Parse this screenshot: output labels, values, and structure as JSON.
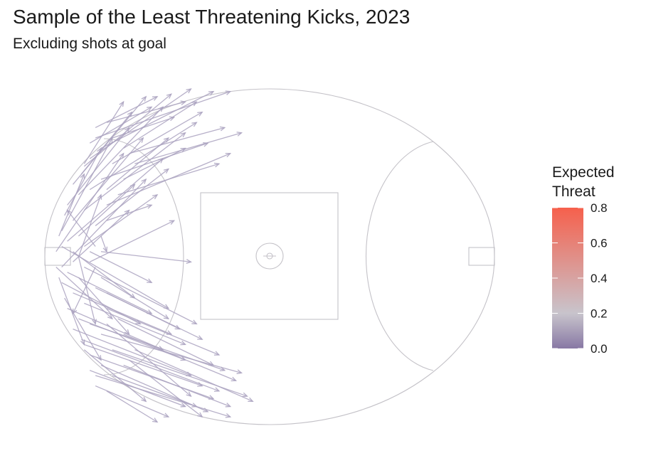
{
  "title": "Sample of the Least Threatening Kicks, 2023",
  "subtitle": "Excluding shots at goal",
  "legend": {
    "title_line1": "Expected",
    "title_line2": "Threat",
    "ticks": [
      "0.8",
      "0.6",
      "0.4",
      "0.2",
      "0.0"
    ],
    "colors": {
      "low": "#8878a4",
      "mid": "#c8c4cc",
      "high": "#f6604c"
    }
  },
  "colors": {
    "field_line": "#c4c2c8",
    "arrow": "#aaa2c0"
  },
  "chart_data": {
    "type": "scatter",
    "title": "Sample of the Least Threatening Kicks, 2023",
    "subtitle": "Excluding shots at goal",
    "xlim": [
      -80,
      80
    ],
    "ylim": [
      -65,
      65
    ],
    "grid": false,
    "legend_placement": "right",
    "color_scale": {
      "name": "Expected Threat",
      "range": [
        0.0,
        0.8
      ],
      "ticks": [
        0.0,
        0.2,
        0.4,
        0.6,
        0.8
      ]
    },
    "kicks": [
      {
        "x0": -62,
        "y0": 46,
        "x1": -14,
        "y1": 64,
        "xt": 0.06
      },
      {
        "x0": -60,
        "y0": 42,
        "x1": -20,
        "y1": 64,
        "xt": 0.05
      },
      {
        "x0": -64,
        "y0": 38,
        "x1": -28,
        "y1": 65,
        "xt": 0.05
      },
      {
        "x0": -66,
        "y0": 35,
        "x1": -35,
        "y1": 63,
        "xt": 0.04
      },
      {
        "x0": -70,
        "y0": 28,
        "x1": -44,
        "y1": 62,
        "xt": 0.04
      },
      {
        "x0": -67,
        "y0": 32,
        "x1": -49,
        "y1": 56,
        "xt": 0.04
      },
      {
        "x0": -72,
        "y0": 20,
        "x1": -50,
        "y1": 50,
        "xt": 0.03
      },
      {
        "x0": -68,
        "y0": 24,
        "x1": -38,
        "y1": 58,
        "xt": 0.04
      },
      {
        "x0": -62,
        "y0": 50,
        "x1": -40,
        "y1": 62,
        "xt": 0.05
      },
      {
        "x0": -58,
        "y0": 52,
        "x1": -30,
        "y1": 60,
        "xt": 0.05
      },
      {
        "x0": -74,
        "y0": 10,
        "x1": -56,
        "y1": 46,
        "xt": 0.03
      },
      {
        "x0": -76,
        "y0": 2,
        "x1": -52,
        "y1": 40,
        "xt": 0.03
      },
      {
        "x0": -70,
        "y0": 14,
        "x1": -45,
        "y1": 46,
        "xt": 0.03
      },
      {
        "x0": -66,
        "y0": 18,
        "x1": -30,
        "y1": 48,
        "xt": 0.04
      },
      {
        "x0": -64,
        "y0": 26,
        "x1": -26,
        "y1": 52,
        "xt": 0.04
      },
      {
        "x0": -60,
        "y0": 30,
        "x1": -22,
        "y1": 44,
        "xt": 0.05
      },
      {
        "x0": -56,
        "y0": 36,
        "x1": -24,
        "y1": 56,
        "xt": 0.05
      },
      {
        "x0": -52,
        "y0": 42,
        "x1": -26,
        "y1": 60,
        "xt": 0.05
      },
      {
        "x0": -74,
        "y0": -4,
        "x1": -44,
        "y1": 30,
        "xt": 0.03
      },
      {
        "x0": -72,
        "y0": 6,
        "x1": -38,
        "y1": 38,
        "xt": 0.04
      },
      {
        "x0": -68,
        "y0": 8,
        "x1": -48,
        "y1": 28,
        "xt": 0.03
      },
      {
        "x0": -66,
        "y0": 4,
        "x1": -40,
        "y1": 24,
        "xt": 0.03
      },
      {
        "x0": -70,
        "y0": -2,
        "x1": -50,
        "y1": 18,
        "xt": 0.03
      },
      {
        "x0": -62,
        "y0": 12,
        "x1": -36,
        "y1": 34,
        "xt": 0.04
      },
      {
        "x0": -58,
        "y0": 20,
        "x1": -14,
        "y1": 40,
        "xt": 0.05
      },
      {
        "x0": -54,
        "y0": 24,
        "x1": -18,
        "y1": 36,
        "xt": 0.05
      },
      {
        "x0": -64,
        "y0": 44,
        "x1": -42,
        "y1": 58,
        "xt": 0.04
      },
      {
        "x0": -56,
        "y0": 46,
        "x1": -34,
        "y1": 54,
        "xt": 0.05
      },
      {
        "x0": -73,
        "y0": 16,
        "x1": -60,
        "y1": 42,
        "xt": 0.03
      },
      {
        "x0": -75,
        "y0": 8,
        "x1": -66,
        "y1": 32,
        "xt": 0.03
      },
      {
        "x0": -60,
        "y0": 8,
        "x1": -58,
        "y1": 2,
        "xt": 0.02
      },
      {
        "x0": -62,
        "y0": 4,
        "x1": -72,
        "y1": 18,
        "xt": 0.02
      },
      {
        "x0": -68,
        "y0": 0,
        "x1": -60,
        "y1": 24,
        "xt": 0.03
      },
      {
        "x0": -58,
        "y0": 14,
        "x1": -42,
        "y1": 20,
        "xt": 0.04
      },
      {
        "x0": -52,
        "y0": 30,
        "x1": -30,
        "y1": 42,
        "xt": 0.05
      },
      {
        "x0": -48,
        "y0": 36,
        "x1": -10,
        "y1": 48,
        "xt": 0.06
      },
      {
        "x0": -50,
        "y0": 40,
        "x1": -16,
        "y1": 50,
        "xt": 0.05
      },
      {
        "x0": -66,
        "y0": 36,
        "x1": -52,
        "y1": 60,
        "xt": 0.04
      },
      {
        "x0": -64,
        "y0": -2,
        "x1": -34,
        "y1": 14,
        "xt": 0.04
      },
      {
        "x0": -58,
        "y0": 26,
        "x1": -36,
        "y1": 46,
        "xt": 0.04
      },
      {
        "x0": -62,
        "y0": -46,
        "x1": -14,
        "y1": -62,
        "xt": 0.06
      },
      {
        "x0": -60,
        "y0": -42,
        "x1": -22,
        "y1": -60,
        "xt": 0.05
      },
      {
        "x0": -64,
        "y0": -38,
        "x1": -20,
        "y1": -55,
        "xt": 0.05
      },
      {
        "x0": -66,
        "y0": -34,
        "x1": -24,
        "y1": -50,
        "xt": 0.05
      },
      {
        "x0": -70,
        "y0": -28,
        "x1": -28,
        "y1": -46,
        "xt": 0.04
      },
      {
        "x0": -67,
        "y0": -32,
        "x1": -18,
        "y1": -52,
        "xt": 0.05
      },
      {
        "x0": -72,
        "y0": -20,
        "x1": -38,
        "y1": -36,
        "xt": 0.04
      },
      {
        "x0": -68,
        "y0": -24,
        "x1": -30,
        "y1": -40,
        "xt": 0.04
      },
      {
        "x0": -62,
        "y0": -50,
        "x1": -36,
        "y1": -62,
        "xt": 0.05
      },
      {
        "x0": -58,
        "y0": -52,
        "x1": -40,
        "y1": -64,
        "xt": 0.05
      },
      {
        "x0": -74,
        "y0": -10,
        "x1": -46,
        "y1": -26,
        "xt": 0.03
      },
      {
        "x0": -76,
        "y0": -4,
        "x1": -56,
        "y1": -24,
        "xt": 0.03
      },
      {
        "x0": -70,
        "y0": -14,
        "x1": -35,
        "y1": -30,
        "xt": 0.04
      },
      {
        "x0": -66,
        "y0": -18,
        "x1": -30,
        "y1": -34,
        "xt": 0.04
      },
      {
        "x0": -64,
        "y0": -26,
        "x1": -16,
        "y1": -44,
        "xt": 0.05
      },
      {
        "x0": -60,
        "y0": -30,
        "x1": -10,
        "y1": -45,
        "xt": 0.06
      },
      {
        "x0": -56,
        "y0": -36,
        "x1": -8,
        "y1": -54,
        "xt": 0.06
      },
      {
        "x0": -52,
        "y0": -42,
        "x1": -14,
        "y1": -58,
        "xt": 0.05
      },
      {
        "x0": -74,
        "y0": 4,
        "x1": -36,
        "y1": -20,
        "xt": 0.04
      },
      {
        "x0": -72,
        "y0": -6,
        "x1": -42,
        "y1": -22,
        "xt": 0.04
      },
      {
        "x0": -68,
        "y0": -8,
        "x1": -50,
        "y1": -30,
        "xt": 0.03
      },
      {
        "x0": -66,
        "y0": -4,
        "x1": -26,
        "y1": -26,
        "xt": 0.04
      },
      {
        "x0": -70,
        "y0": 2,
        "x1": -48,
        "y1": -16,
        "xt": 0.03
      },
      {
        "x0": -62,
        "y0": -12,
        "x1": -24,
        "y1": -32,
        "xt": 0.05
      },
      {
        "x0": -58,
        "y0": -20,
        "x1": -18,
        "y1": -38,
        "xt": 0.05
      },
      {
        "x0": -54,
        "y0": -24,
        "x1": -20,
        "y1": -42,
        "xt": 0.05
      },
      {
        "x0": -64,
        "y0": -44,
        "x1": -30,
        "y1": -58,
        "xt": 0.05
      },
      {
        "x0": -56,
        "y0": -46,
        "x1": -26,
        "y1": -58,
        "xt": 0.05
      },
      {
        "x0": -73,
        "y0": -16,
        "x1": -60,
        "y1": -40,
        "xt": 0.03
      },
      {
        "x0": -75,
        "y0": -8,
        "x1": -66,
        "y1": -34,
        "xt": 0.03
      },
      {
        "x0": -60,
        "y0": -8,
        "x1": -36,
        "y1": -24,
        "xt": 0.04
      },
      {
        "x0": -62,
        "y0": -4,
        "x1": -70,
        "y1": -22,
        "xt": 0.02
      },
      {
        "x0": -68,
        "y0": 0,
        "x1": -62,
        "y1": -26,
        "xt": 0.03
      },
      {
        "x0": -58,
        "y0": -14,
        "x1": -32,
        "y1": -28,
        "xt": 0.04
      },
      {
        "x0": -52,
        "y0": -30,
        "x1": -12,
        "y1": -48,
        "xt": 0.06
      },
      {
        "x0": -48,
        "y0": -36,
        "x1": -6,
        "y1": -56,
        "xt": 0.06
      },
      {
        "x0": -50,
        "y0": -40,
        "x1": -24,
        "y1": -62,
        "xt": 0.05
      },
      {
        "x0": -66,
        "y0": -36,
        "x1": -44,
        "y1": -56,
        "xt": 0.04
      },
      {
        "x0": -64,
        "y0": 2,
        "x1": -42,
        "y1": -10,
        "xt": 0.03
      },
      {
        "x0": -58,
        "y0": -26,
        "x1": -28,
        "y1": -54,
        "xt": 0.04
      },
      {
        "x0": -60,
        "y0": 2,
        "x1": -28,
        "y1": -2,
        "xt": 0.04
      }
    ]
  }
}
